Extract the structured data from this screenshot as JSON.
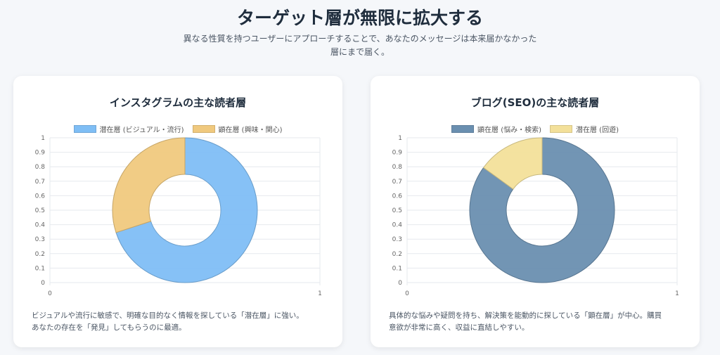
{
  "page": {
    "title": "ターゲット層が無限に拡大する",
    "subtitle_line1": "異なる性質を持つユーザーにアプローチすることで、あなたのメッセージは本来届かなかった",
    "subtitle_line2": "層にまで届く。"
  },
  "charts": [
    {
      "title": "インスタグラムの主な読者層",
      "description_line1": "ビジュアルや流行に敏感で、明確な目的なく情報を探している「潜在層」に強い。",
      "description_line2": "あなたの存在を「発見」してもらうのに最適。"
    },
    {
      "title": "ブログ(SEO)の主な読者層",
      "description_line1": "具体的な悩みや疑問を持ち、解決策を能動的に探している「顕在層」が中心。購買",
      "description_line2": "意欲が非常に高く、収益に直結しやすい。"
    }
  ],
  "chart_data": [
    {
      "type": "pie",
      "title": "インスタグラムの主な読者層",
      "labels": [
        "潜在層 (ビジュアル・流行)",
        "顕在層 (興味・関心)"
      ],
      "values": [
        70,
        30
      ],
      "colors": [
        "#7fbef5",
        "#f0c97e"
      ],
      "y_ticks": [
        "0",
        "0.1",
        "0.2",
        "0.3",
        "0.4",
        "0.5",
        "0.6",
        "0.7",
        "0.8",
        "0.9",
        "1"
      ],
      "x_ticks": [
        "0",
        "1"
      ],
      "grid": true,
      "legend": "top"
    },
    {
      "type": "pie",
      "title": "ブログ(SEO)の主な読者層",
      "labels": [
        "顕在層 (悩み・検索)",
        "潜在層 (回遊)"
      ],
      "values": [
        85,
        15
      ],
      "colors": [
        "#6a8fb0",
        "#f3e09a"
      ],
      "y_ticks": [
        "0",
        "0.1",
        "0.2",
        "0.3",
        "0.4",
        "0.5",
        "0.6",
        "0.7",
        "0.8",
        "0.9",
        "1"
      ],
      "x_ticks": [
        "0",
        "1"
      ],
      "grid": true,
      "legend": "top"
    }
  ]
}
